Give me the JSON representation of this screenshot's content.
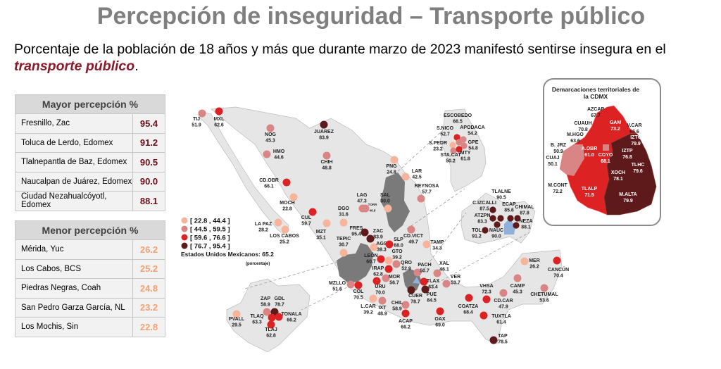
{
  "title": "Percepción de inseguridad – Transporte público",
  "subtitle": {
    "text": "Porcentaje de la población de 18 años y más que durante marzo de 2023 manifestó sentirse insegura en el ",
    "highlight": "transporte público",
    "end": "."
  },
  "mayor": {
    "header": "Mayor percepción  %",
    "rows": [
      {
        "city": "Fresnillo, Zac",
        "value": "95.4"
      },
      {
        "city": "Toluca de Lerdo, Edomex",
        "value": "91.2"
      },
      {
        "city": "Tlalnepantla de Baz, Edomex",
        "value": "90.5"
      },
      {
        "city": "Naucalpan de Juárez, Edomex",
        "value": "90.0"
      },
      {
        "city": "Ciudad Nezahualcóyotl, Edomex",
        "value": "88.1"
      }
    ]
  },
  "menor": {
    "header": "Menor percepción  %",
    "rows": [
      {
        "city": "Mérida, Yuc",
        "value": "26.2"
      },
      {
        "city": "Los Cabos, BCS",
        "value": "25.2"
      },
      {
        "city": "Piedras Negras, Coah",
        "value": "24.8"
      },
      {
        "city": "San Pedro Garza García, NL",
        "value": "23.2"
      },
      {
        "city": "Los Mochis, Sin",
        "value": "22.8"
      }
    ]
  },
  "chart_data": {
    "type": "map",
    "legend": [
      {
        "label": "[ 22.8 , 44.4 ]",
        "min": 22.8,
        "max": 44.4,
        "color": "#f8b49a"
      },
      {
        "label": "[ 44.5 , 59.5 ]",
        "min": 44.5,
        "max": 59.5,
        "color": "#d98585"
      },
      {
        "label": "[ 59.6 , 76.6 ]",
        "min": 59.6,
        "max": 76.6,
        "color": "#dc2222"
      },
      {
        "label": "[ 76.7 , 95.4 ]",
        "min": 76.7,
        "max": 95.4,
        "color": "#5e1a1a"
      }
    ],
    "national": "Estados Unidos Mexicanos:  65.2",
    "unit": "(porcentaje)",
    "cities": [
      {
        "name": "TIJ",
        "value": 51.9
      },
      {
        "name": "MXL",
        "value": 62.6
      },
      {
        "name": "NOG",
        "value": 45.3
      },
      {
        "name": "JUÁREZ",
        "value": 83.9
      },
      {
        "name": "HMO",
        "value": 44.6
      },
      {
        "name": "CHIH",
        "value": 48.8
      },
      {
        "name": "CD.OBR",
        "value": 66.1
      },
      {
        "name": "MOCH",
        "value": 22.8
      },
      {
        "name": "CUL",
        "value": 59.7
      },
      {
        "name": "LA PAZ",
        "value": 28.2
      },
      {
        "name": "LOS CABOS",
        "value": 25.2
      },
      {
        "name": "MZT",
        "value": 35.1
      },
      {
        "name": "DGO",
        "value": 31.6
      },
      {
        "name": "LAG",
        "value": 47.3
      },
      {
        "name": "TORR",
        "value": 46.8
      },
      {
        "name": "SAL",
        "value": 30.0
      },
      {
        "name": "PNG",
        "value": 24.8
      },
      {
        "name": "LAR",
        "value": 42.5
      },
      {
        "name": "REYNOSA",
        "value": 57.7
      },
      {
        "name": "FRES",
        "value": 95.4
      },
      {
        "name": "ZAC",
        "value": 83.9
      },
      {
        "name": "TEPIC",
        "value": 30.7
      },
      {
        "name": "AGS",
        "value": 39.3
      },
      {
        "name": "SLP",
        "value": 68.0
      },
      {
        "name": "CD.VICT",
        "value": 49.7
      },
      {
        "name": "TAMP",
        "value": 34.3
      },
      {
        "name": "GTO",
        "value": 39.2
      },
      {
        "name": "LEÓN",
        "value": 60.7
      },
      {
        "name": "QRO",
        "value": 52.9
      },
      {
        "name": "IRAP",
        "value": 62.8
      },
      {
        "name": "PACH",
        "value": 50.7
      },
      {
        "name": "XAL",
        "value": 46.1
      },
      {
        "name": "MOR",
        "value": 56.7
      },
      {
        "name": "VER",
        "value": 53.7
      },
      {
        "name": "MZLLO",
        "value": 51.6
      },
      {
        "name": "COL",
        "value": 70.5
      },
      {
        "name": "URU",
        "value": 70.0
      },
      {
        "name": "TLAX",
        "value": 63.4
      },
      {
        "name": "CUER",
        "value": 78.7
      },
      {
        "name": "PUE",
        "value": 84.5
      },
      {
        "name": "L.CAR",
        "value": 39.2
      },
      {
        "name": "IXT",
        "value": 48.9
      },
      {
        "name": "CHIL",
        "value": 58.9
      },
      {
        "name": "ACAP",
        "value": 66.2
      },
      {
        "name": "OAX",
        "value": 69.0
      },
      {
        "name": "COATZA",
        "value": 68.4
      },
      {
        "name": "VHSA",
        "value": 72.3
      },
      {
        "name": "CAMP",
        "value": 45.3
      },
      {
        "name": "CD.CAR",
        "value": 47.9
      },
      {
        "name": "TUXTLA",
        "value": 61.4
      },
      {
        "name": "TAP",
        "value": 78.5
      },
      {
        "name": "MER",
        "value": 26.2
      },
      {
        "name": "CANCÚN",
        "value": 70.4
      },
      {
        "name": "CHETUMAL",
        "value": 53.6
      },
      {
        "name": "ESCOBEDO",
        "value": 66.5
      },
      {
        "name": "S.NICO",
        "value": 52.7
      },
      {
        "name": "APODACA",
        "value": 54.2
      },
      {
        "name": "GPE",
        "value": 54.8
      },
      {
        "name": "S.PEDR",
        "value": 23.2
      },
      {
        "name": "STA.CAT",
        "value": 50.2
      },
      {
        "name": "MTY",
        "value": 61.8
      },
      {
        "name": "TLALNE",
        "value": 90.5
      },
      {
        "name": "C.IZCALLI",
        "value": 87.5
      },
      {
        "name": "ECAP",
        "value": 85.6
      },
      {
        "name": "CHIMAL",
        "value": 87.8
      },
      {
        "name": "ATZPN",
        "value": 83.3
      },
      {
        "name": "NEZA",
        "value": 88.1
      },
      {
        "name": "TOL",
        "value": 91.2
      },
      {
        "name": "NAUC",
        "value": 90.0
      },
      {
        "name": "PVALL",
        "value": 29.5
      },
      {
        "name": "ZAP",
        "value": 58.9
      },
      {
        "name": "GDL",
        "value": 78.7
      },
      {
        "name": "TLAQ",
        "value": 63.3
      },
      {
        "name": "TONALA",
        "value": 66.2
      },
      {
        "name": "TLAJ",
        "value": 62.8
      }
    ],
    "cdmx": {
      "title1": "Demarcaciones territoriales de",
      "title2": "la CDMX",
      "districts": [
        {
          "name": "AZCAP",
          "value": 67.7
        },
        {
          "name": "CUAUH",
          "value": 70.8
        },
        {
          "name": "GAM",
          "value": 73.2
        },
        {
          "name": "V.CAR",
          "value": 66.6
        },
        {
          "name": "M.HGO",
          "value": 63.6
        },
        {
          "name": "IZTC",
          "value": 79.9
        },
        {
          "name": "B. JRZ",
          "value": 50.9
        },
        {
          "name": "A.OBR",
          "value": 61.0
        },
        {
          "name": "COYO",
          "value": 68.1
        },
        {
          "name": "IZTP",
          "value": 76.8
        },
        {
          "name": "CUAJ",
          "value": 50.1
        },
        {
          "name": "TLHC",
          "value": 79.6
        },
        {
          "name": "XOCH",
          "value": 78.1
        },
        {
          "name": "M.CONT",
          "value": 72.2
        },
        {
          "name": "TLALP",
          "value": 71.5
        },
        {
          "name": "M.ALTA",
          "value": 79.9
        }
      ]
    }
  }
}
